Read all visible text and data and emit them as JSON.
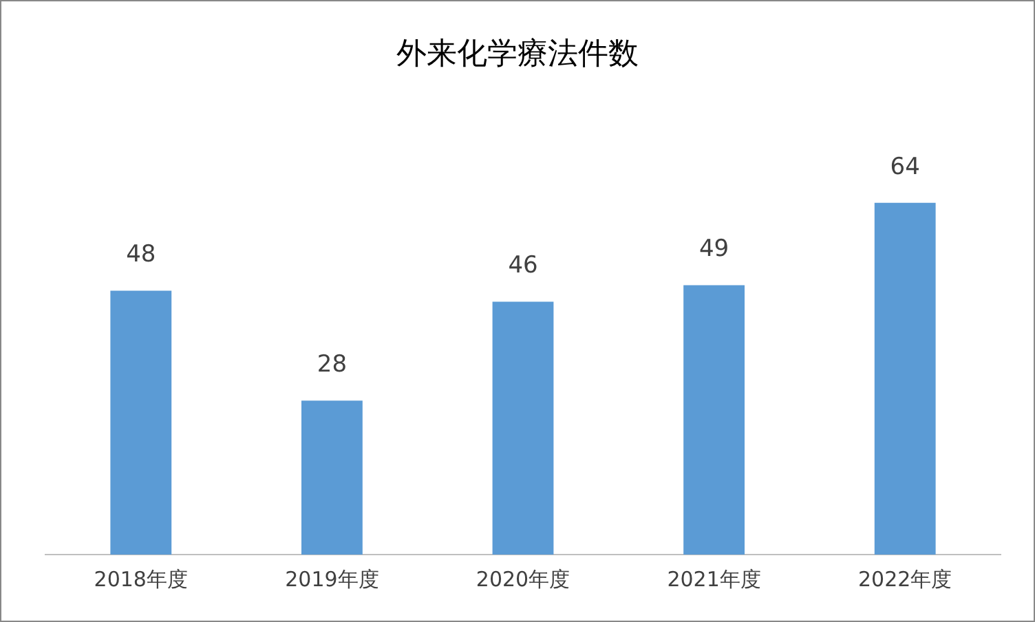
{
  "chart_data": {
    "type": "bar",
    "title": "外来化学療法件数",
    "categories": [
      "2018年度",
      "2019年度",
      "2020年度",
      "2021年度",
      "2022年度"
    ],
    "values": [
      48,
      28,
      46,
      49,
      64
    ],
    "color": "#5b9bd5",
    "data_labels": true,
    "grid": false,
    "legend": false,
    "relative": false
  }
}
